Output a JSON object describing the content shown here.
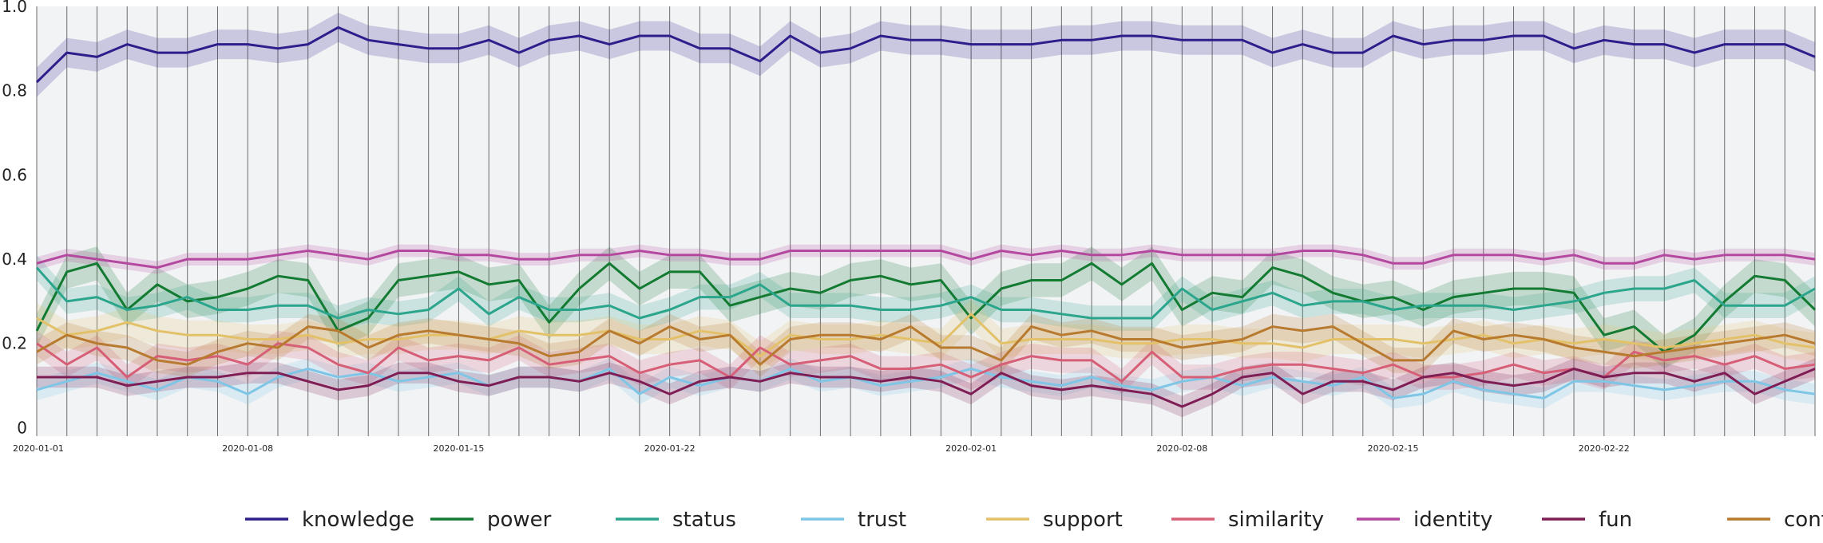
{
  "chart_data": {
    "type": "line",
    "title": "",
    "xlabel": "",
    "ylabel": "",
    "x": [
      "2020-01-01",
      "2020-01-02",
      "2020-01-03",
      "2020-01-04",
      "2020-01-05",
      "2020-01-06",
      "2020-01-07",
      "2020-01-08",
      "2020-01-09",
      "2020-01-10",
      "2020-01-11",
      "2020-01-12",
      "2020-01-13",
      "2020-01-14",
      "2020-01-15",
      "2020-01-16",
      "2020-01-17",
      "2020-01-18",
      "2020-01-19",
      "2020-01-20",
      "2020-01-21",
      "2020-01-22",
      "2020-01-23",
      "2020-01-24",
      "2020-01-25",
      "2020-01-26",
      "2020-01-27",
      "2020-01-28",
      "2020-01-29",
      "2020-01-30",
      "2020-01-31",
      "2020-02-01",
      "2020-02-02",
      "2020-02-03",
      "2020-02-04",
      "2020-02-05",
      "2020-02-06",
      "2020-02-07",
      "2020-02-08",
      "2020-02-09",
      "2020-02-10",
      "2020-02-11",
      "2020-02-12",
      "2020-02-13",
      "2020-02-14",
      "2020-02-15",
      "2020-02-16",
      "2020-02-17",
      "2020-02-18",
      "2020-02-19",
      "2020-02-20",
      "2020-02-21",
      "2020-02-22",
      "2020-02-23",
      "2020-02-24",
      "2020-02-25",
      "2020-02-26",
      "2020-02-27",
      "2020-02-28",
      "2020-02-29"
    ],
    "xticks": [
      "2020-01-01",
      "2020-01-08",
      "2020-01-15",
      "2020-01-22",
      "2020-02-01",
      "2020-02-08",
      "2020-02-15",
      "2020-02-22"
    ],
    "ylim": [
      -0.02,
      1.0
    ],
    "yticks": [
      0,
      0.2,
      0.4,
      0.6,
      0.8,
      1.0
    ],
    "ytick_labels": [
      "0",
      "0.2",
      "0.4",
      "0.6",
      "0.8",
      "1.0"
    ],
    "grid": "vertical lines",
    "legend_position": "bottom",
    "series": [
      {
        "name": "knowledge",
        "color": "#2c1f8c",
        "band": 0.035,
        "values": [
          0.82,
          0.89,
          0.88,
          0.91,
          0.89,
          0.89,
          0.91,
          0.91,
          0.9,
          0.91,
          0.95,
          0.92,
          0.91,
          0.9,
          0.9,
          0.92,
          0.89,
          0.92,
          0.93,
          0.91,
          0.93,
          0.93,
          0.9,
          0.9,
          0.87,
          0.93,
          0.89,
          0.9,
          0.93,
          0.92,
          0.92,
          0.91,
          0.91,
          0.91,
          0.92,
          0.92,
          0.93,
          0.93,
          0.92,
          0.92,
          0.92,
          0.89,
          0.91,
          0.89,
          0.89,
          0.93,
          0.91,
          0.92,
          0.92,
          0.93,
          0.93,
          0.9,
          0.92,
          0.91,
          0.91,
          0.89,
          0.91,
          0.91,
          0.91,
          0.88
        ]
      },
      {
        "name": "power",
        "color": "#137a32",
        "band": 0.04,
        "values": [
          0.23,
          0.37,
          0.39,
          0.28,
          0.34,
          0.3,
          0.31,
          0.33,
          0.36,
          0.35,
          0.23,
          0.26,
          0.35,
          0.36,
          0.37,
          0.34,
          0.35,
          0.25,
          0.33,
          0.39,
          0.33,
          0.37,
          0.37,
          0.29,
          0.31,
          0.33,
          0.32,
          0.35,
          0.36,
          0.34,
          0.35,
          0.26,
          0.33,
          0.35,
          0.35,
          0.39,
          0.34,
          0.39,
          0.28,
          0.32,
          0.31,
          0.38,
          0.36,
          0.32,
          0.3,
          0.31,
          0.28,
          0.31,
          0.32,
          0.33,
          0.33,
          0.32,
          0.22,
          0.24,
          0.18,
          0.22,
          0.3,
          0.36,
          0.35,
          0.28
        ]
      },
      {
        "name": "status",
        "color": "#2ca58d",
        "band": 0.03,
        "values": [
          0.38,
          0.3,
          0.31,
          0.28,
          0.29,
          0.31,
          0.28,
          0.28,
          0.29,
          0.29,
          0.26,
          0.28,
          0.27,
          0.28,
          0.33,
          0.27,
          0.31,
          0.28,
          0.28,
          0.29,
          0.26,
          0.28,
          0.31,
          0.31,
          0.34,
          0.29,
          0.29,
          0.29,
          0.28,
          0.28,
          0.29,
          0.31,
          0.28,
          0.28,
          0.27,
          0.26,
          0.26,
          0.26,
          0.33,
          0.28,
          0.3,
          0.32,
          0.29,
          0.3,
          0.3,
          0.28,
          0.29,
          0.29,
          0.29,
          0.28,
          0.29,
          0.3,
          0.32,
          0.33,
          0.33,
          0.35,
          0.29,
          0.29,
          0.29,
          0.33
        ]
      },
      {
        "name": "trust",
        "color": "#7fc6e6",
        "band": 0.025,
        "values": [
          0.09,
          0.11,
          0.13,
          0.11,
          0.09,
          0.12,
          0.11,
          0.08,
          0.12,
          0.14,
          0.12,
          0.13,
          0.11,
          0.12,
          0.13,
          0.1,
          0.12,
          0.12,
          0.11,
          0.14,
          0.08,
          0.12,
          0.1,
          0.12,
          0.11,
          0.14,
          0.11,
          0.12,
          0.1,
          0.11,
          0.12,
          0.14,
          0.12,
          0.11,
          0.1,
          0.12,
          0.1,
          0.09,
          0.11,
          0.12,
          0.1,
          0.12,
          0.11,
          0.1,
          0.12,
          0.07,
          0.08,
          0.11,
          0.09,
          0.08,
          0.07,
          0.11,
          0.11,
          0.1,
          0.09,
          0.1,
          0.11,
          0.11,
          0.09,
          0.08
        ]
      },
      {
        "name": "support",
        "color": "#e3c169",
        "band": 0.035,
        "values": [
          0.26,
          0.22,
          0.23,
          0.25,
          0.23,
          0.22,
          0.22,
          0.21,
          0.21,
          0.22,
          0.2,
          0.21,
          0.21,
          0.22,
          0.22,
          0.21,
          0.23,
          0.22,
          0.22,
          0.23,
          0.21,
          0.21,
          0.23,
          0.22,
          0.17,
          0.22,
          0.21,
          0.21,
          0.22,
          0.21,
          0.2,
          0.27,
          0.2,
          0.21,
          0.21,
          0.21,
          0.2,
          0.2,
          0.21,
          0.21,
          0.2,
          0.2,
          0.19,
          0.21,
          0.21,
          0.21,
          0.2,
          0.21,
          0.22,
          0.2,
          0.21,
          0.2,
          0.21,
          0.2,
          0.19,
          0.2,
          0.21,
          0.22,
          0.2,
          0.19
        ]
      },
      {
        "name": "similarity",
        "color": "#d65f77",
        "band": 0.03,
        "values": [
          0.2,
          0.15,
          0.19,
          0.12,
          0.17,
          0.16,
          0.17,
          0.15,
          0.2,
          0.19,
          0.15,
          0.13,
          0.19,
          0.16,
          0.17,
          0.16,
          0.19,
          0.15,
          0.16,
          0.17,
          0.13,
          0.15,
          0.16,
          0.12,
          0.19,
          0.15,
          0.16,
          0.17,
          0.14,
          0.14,
          0.15,
          0.12,
          0.15,
          0.17,
          0.16,
          0.16,
          0.11,
          0.18,
          0.12,
          0.12,
          0.14,
          0.15,
          0.15,
          0.14,
          0.13,
          0.15,
          0.12,
          0.12,
          0.13,
          0.15,
          0.13,
          0.14,
          0.12,
          0.18,
          0.16,
          0.17,
          0.15,
          0.17,
          0.14,
          0.15
        ]
      },
      {
        "name": "identity",
        "color": "#b4489f",
        "band": 0.015,
        "values": [
          0.39,
          0.41,
          0.4,
          0.39,
          0.38,
          0.4,
          0.4,
          0.4,
          0.41,
          0.42,
          0.41,
          0.4,
          0.42,
          0.42,
          0.41,
          0.41,
          0.4,
          0.4,
          0.41,
          0.41,
          0.42,
          0.41,
          0.41,
          0.4,
          0.4,
          0.42,
          0.42,
          0.42,
          0.42,
          0.42,
          0.42,
          0.4,
          0.42,
          0.41,
          0.42,
          0.41,
          0.41,
          0.42,
          0.41,
          0.41,
          0.41,
          0.41,
          0.42,
          0.42,
          0.41,
          0.39,
          0.39,
          0.41,
          0.41,
          0.41,
          0.4,
          0.41,
          0.39,
          0.39,
          0.41,
          0.4,
          0.41,
          0.41,
          0.41,
          0.4
        ]
      },
      {
        "name": "fun",
        "color": "#7f1d55",
        "band": 0.025,
        "values": [
          0.12,
          0.12,
          0.12,
          0.1,
          0.11,
          0.12,
          0.12,
          0.13,
          0.13,
          0.11,
          0.09,
          0.1,
          0.13,
          0.13,
          0.11,
          0.1,
          0.12,
          0.12,
          0.11,
          0.13,
          0.11,
          0.08,
          0.11,
          0.12,
          0.11,
          0.13,
          0.12,
          0.12,
          0.11,
          0.12,
          0.11,
          0.08,
          0.13,
          0.1,
          0.09,
          0.1,
          0.09,
          0.08,
          0.05,
          0.08,
          0.12,
          0.13,
          0.08,
          0.11,
          0.11,
          0.09,
          0.12,
          0.13,
          0.11,
          0.1,
          0.11,
          0.14,
          0.12,
          0.13,
          0.13,
          0.11,
          0.13,
          0.08,
          0.11,
          0.14
        ]
      },
      {
        "name": "conflict",
        "color": "#b87a2e",
        "band": 0.03,
        "values": [
          0.18,
          0.22,
          0.2,
          0.19,
          0.16,
          0.15,
          0.18,
          0.2,
          0.19,
          0.24,
          0.23,
          0.19,
          0.22,
          0.23,
          0.22,
          0.21,
          0.2,
          0.17,
          0.18,
          0.23,
          0.2,
          0.24,
          0.21,
          0.22,
          0.15,
          0.21,
          0.22,
          0.22,
          0.21,
          0.24,
          0.19,
          0.19,
          0.16,
          0.24,
          0.22,
          0.23,
          0.21,
          0.21,
          0.19,
          0.2,
          0.21,
          0.24,
          0.23,
          0.24,
          0.2,
          0.16,
          0.16,
          0.23,
          0.21,
          0.22,
          0.21,
          0.19,
          0.18,
          0.17,
          0.18,
          0.19,
          0.2,
          0.21,
          0.22,
          0.2
        ]
      }
    ]
  }
}
